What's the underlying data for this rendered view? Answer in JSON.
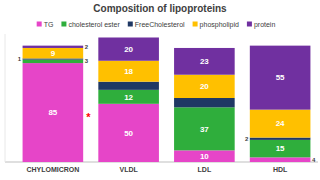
{
  "chart_data": {
    "type": "bar",
    "stacked": true,
    "title": "Composition of lipoproteins",
    "categories": [
      "CHYLOMICRON",
      "VLDL",
      "LDL",
      "HDL"
    ],
    "series": [
      {
        "name": "TG",
        "color": "#e645c8",
        "values": [
          85,
          50,
          10,
          4
        ]
      },
      {
        "name": "cholesterol ester",
        "color": "#2fae3c",
        "values": [
          3,
          12,
          37,
          15
        ]
      },
      {
        "name": "FreeCholesterol",
        "color": "#1f3864",
        "values": [
          1,
          7,
          8,
          2
        ],
        "value_labels": [
          "1",
          null,
          null,
          "2"
        ]
      },
      {
        "name": "phospholipid",
        "color": "#ffc000",
        "values": [
          9,
          18,
          20,
          24
        ]
      },
      {
        "name": "protein",
        "color": "#7030a0",
        "values": [
          2,
          20,
          23,
          55
        ]
      }
    ],
    "ylim": [
      0,
      110
    ],
    "yticks": [],
    "tick_labels": "x",
    "data_labels": true,
    "legend": "top",
    "annotations": [
      "*"
    ]
  }
}
